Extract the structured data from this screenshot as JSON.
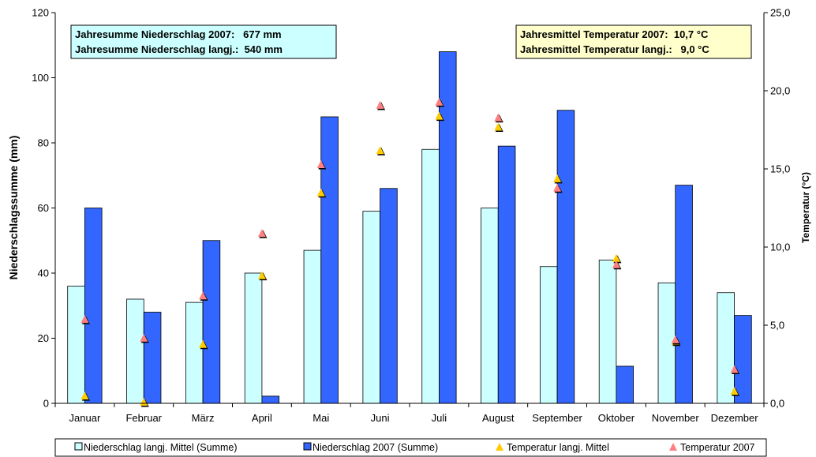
{
  "chart_data": {
    "type": "bar",
    "categories": [
      "Januar",
      "Februar",
      "März",
      "April",
      "Mai",
      "Juni",
      "Juli",
      "August",
      "September",
      "Oktober",
      "November",
      "Dezember"
    ],
    "series": [
      {
        "name": "Niederschlag langj. Mittel (Summe)",
        "kind": "bar",
        "axis": "left",
        "color": "#ccffff",
        "values": [
          36,
          32,
          31,
          40,
          47,
          59,
          78,
          60,
          42,
          44,
          37,
          34
        ]
      },
      {
        "name": "Niederschlag 2007 (Summe)",
        "kind": "bar",
        "axis": "left",
        "color": "#3366ff",
        "values": [
          60,
          28,
          50,
          2.2,
          88,
          66,
          108,
          79,
          90,
          11.4,
          67,
          27
        ]
      },
      {
        "name": "Temperatur langj. Mittel",
        "kind": "marker",
        "marker": "triangle",
        "axis": "right",
        "color": "#ffcc00",
        "values": [
          0.5,
          0.1,
          3.8,
          8.2,
          13.5,
          16.2,
          18.4,
          17.7,
          14.4,
          9.3,
          4.0,
          0.8
        ]
      },
      {
        "name": "Temperatur 2007",
        "kind": "marker",
        "marker": "triangle",
        "axis": "right",
        "color": "#ff8080",
        "values": [
          5.4,
          4.2,
          6.9,
          10.9,
          15.3,
          19.1,
          19.3,
          18.3,
          13.8,
          8.9,
          4.1,
          2.2
        ]
      }
    ],
    "ylabel": "Niederschlagssumme (mm)",
    "ylim": [
      0,
      120
    ],
    "yticks": [
      "0",
      "20",
      "40",
      "60",
      "80",
      "100",
      "120"
    ],
    "y2label": "Temperatur (°C)",
    "y2lim": [
      0,
      25
    ],
    "y2ticks": [
      "0,0",
      "5,0",
      "10,0",
      "15,0",
      "20,0",
      "25,0"
    ],
    "grid": false,
    "legend_position": "bottom",
    "annotations": {
      "precipitation": {
        "color": "#ccffff",
        "lines": [
          "Jahresumme Niederschlag 2007:   677 mm",
          "Jahresumme Niederschlag langj.:  540 mm"
        ]
      },
      "temperature": {
        "color": "#ffffcc",
        "lines": [
          "Jahresmittel Temperatur 2007:  10,7 °C",
          "Jahresmittel Temperatur langj.:   9,0 °C"
        ]
      }
    }
  }
}
